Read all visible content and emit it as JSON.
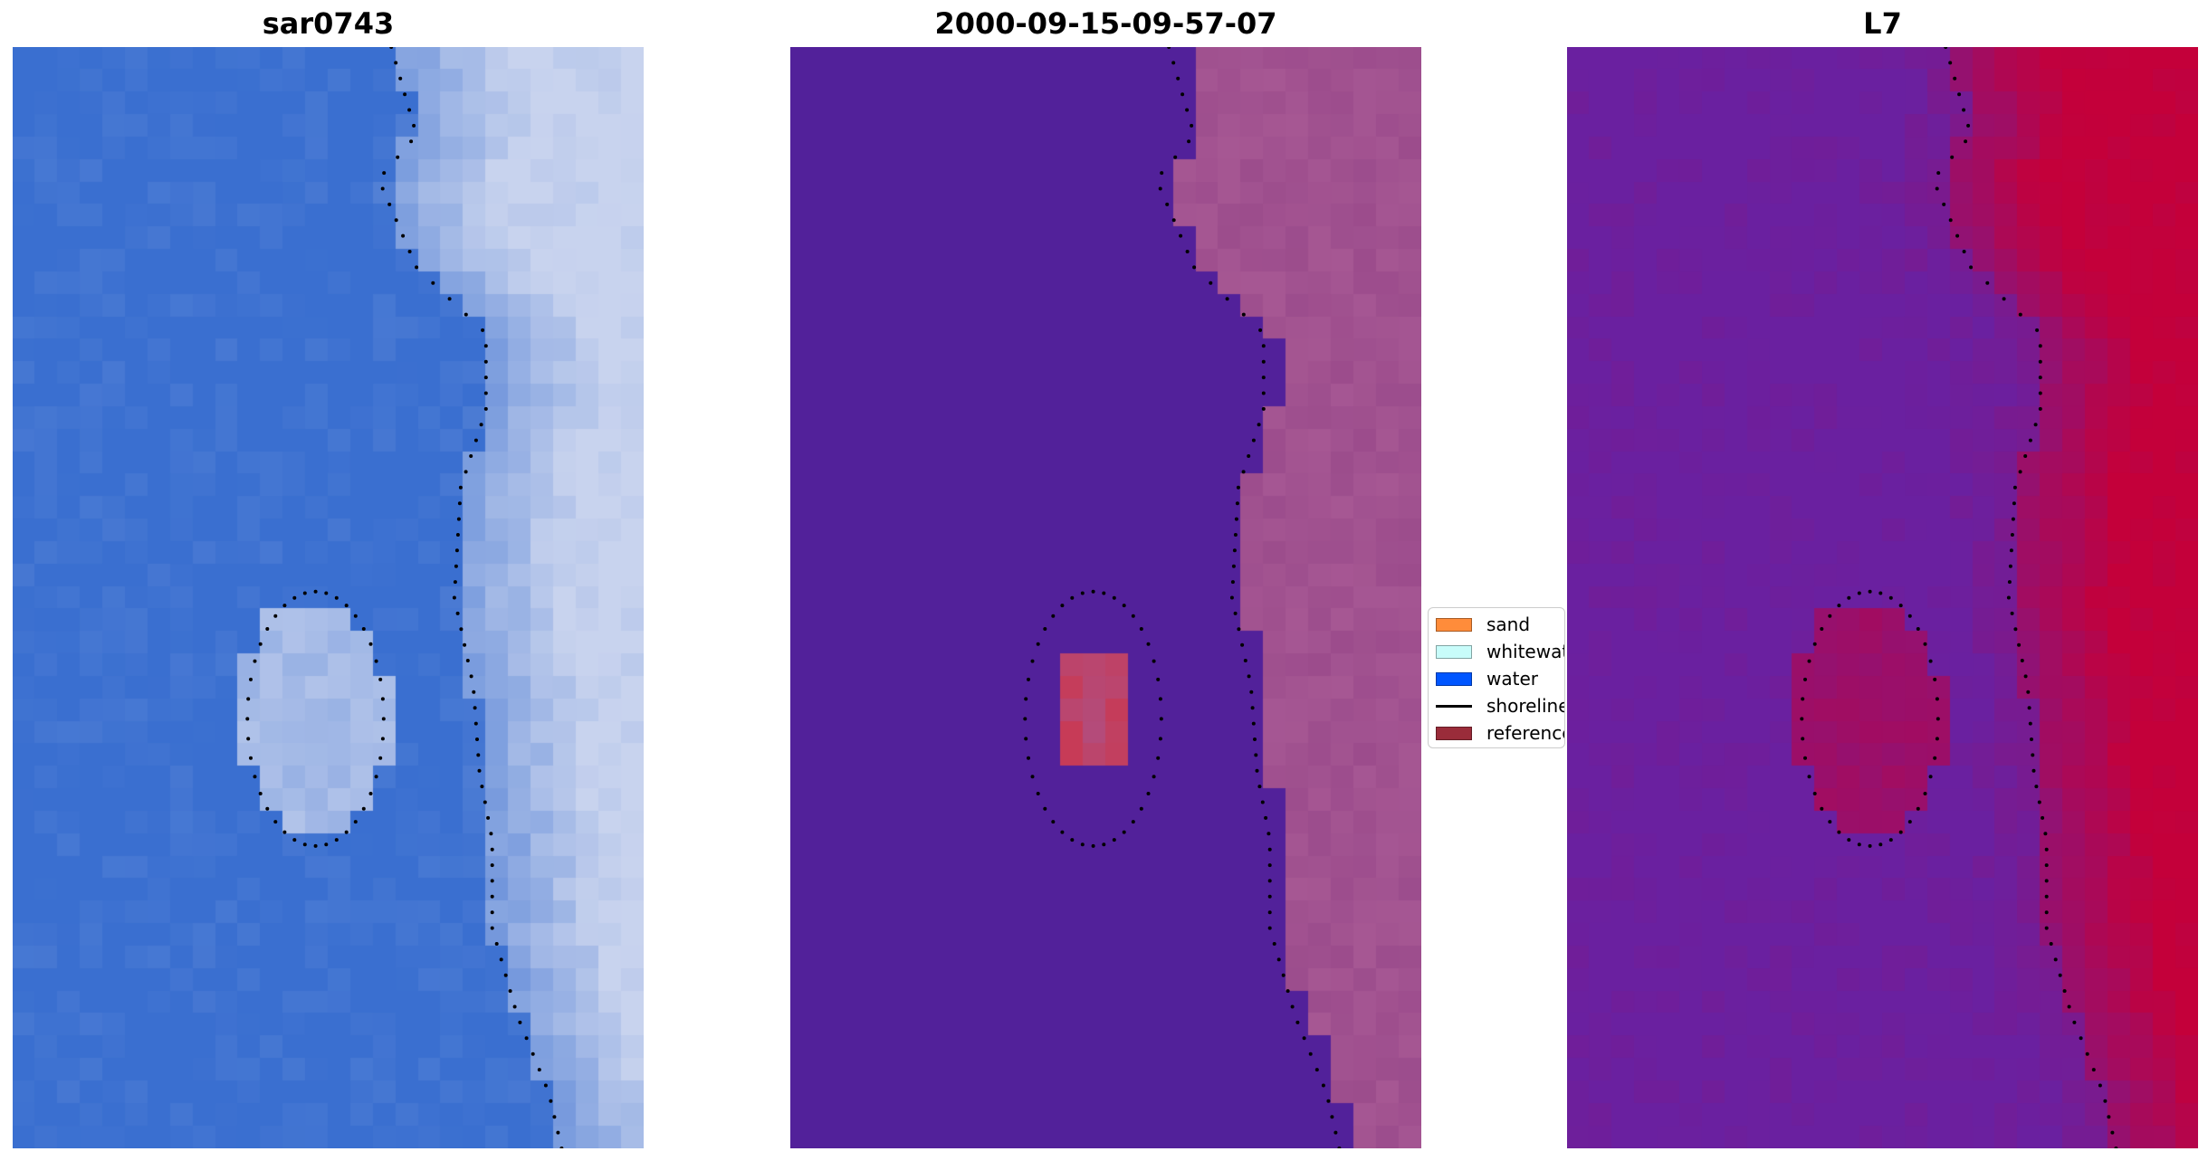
{
  "panels": [
    {
      "title": "sar0743",
      "style": "rgb"
    },
    {
      "title": "2000-09-15-09-57-07",
      "style": "classified"
    },
    {
      "title": "L7",
      "style": "index"
    }
  ],
  "legend": {
    "items": [
      {
        "label": "sand",
        "color": "#ff8c3a",
        "type": "patch"
      },
      {
        "label": "whitewater",
        "color": "#c8fcfa",
        "type": "patch"
      },
      {
        "label": "water",
        "color": "#0056ff",
        "type": "patch"
      },
      {
        "label": "shoreline",
        "color": "#000000",
        "type": "line"
      },
      {
        "label": "reference",
        "color": "#9a2c3a",
        "type": "patch"
      }
    ]
  },
  "colors": {
    "rgb_water": "#3a6fd0",
    "rgb_land": "#c8d3ee",
    "classified_water": "#52219a",
    "classified_land": "#a65793",
    "classified_reference": "#c83a55",
    "index_low": "#6a20a0",
    "index_high": "#c4003a",
    "shoreline_dots": "#000000"
  }
}
